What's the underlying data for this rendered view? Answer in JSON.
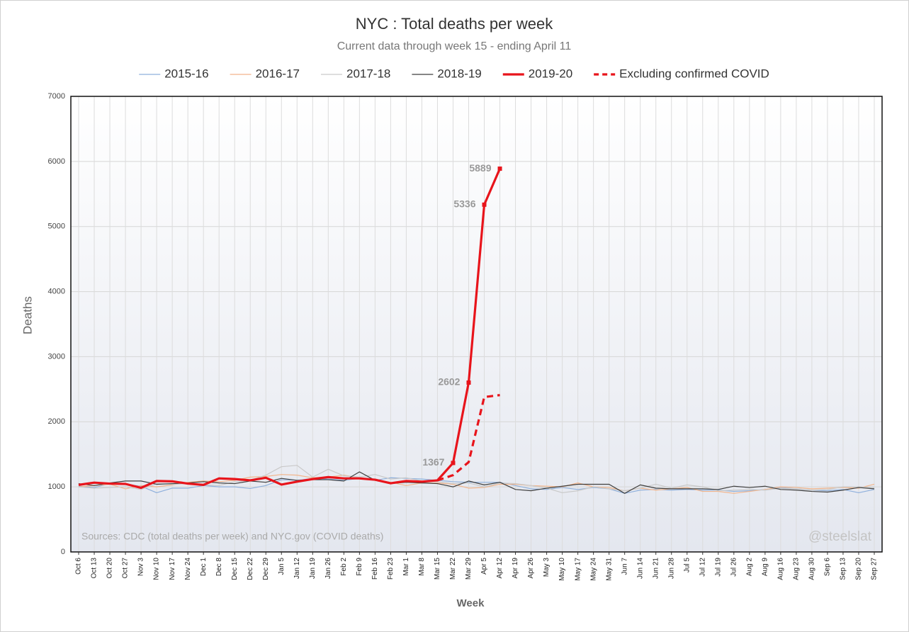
{
  "chart_data": {
    "type": "line",
    "title": "NYC : Total deaths per week",
    "subtitle": "Current data through week 15 - ending April 11",
    "x_label": "Week",
    "y_label": "Deaths",
    "annotations": [
      "Sources: CDC (total deaths per week) and NYC.gov (COVID deaths)",
      "@steelslat"
    ],
    "categories": [
      "Oct 6",
      "Oct 13",
      "Oct 20",
      "Oct 27",
      "Nov 3",
      "Nov 10",
      "Nov 17",
      "Nov 24",
      "Dec 1",
      "Dec 8",
      "Dec 15",
      "Dec 22",
      "Dec 29",
      "Jan 5",
      "Jan 12",
      "Jan 19",
      "Jan 26",
      "Feb 2",
      "Feb 9",
      "Feb 16",
      "Feb 23",
      "Mar 1",
      "Mar 8",
      "Mar 15",
      "Mar 22",
      "Mar 29",
      "Apr 5",
      "Apr 12",
      "Apr 19",
      "Apr 26",
      "May 3",
      "May 10",
      "May 17",
      "May 24",
      "May 31",
      "Jun 7",
      "Jun 14",
      "Jun 21",
      "Jun 28",
      "Jul 5",
      "Jul 12",
      "Jul 19",
      "Jul 26",
      "Aug 2",
      "Aug 9",
      "Aug 16",
      "Aug 23",
      "Aug 30",
      "Sep 6",
      "Sep 13",
      "Sep 20",
      "Sep 27"
    ],
    "ylim": [
      0,
      7000
    ],
    "yticks": [
      0,
      1000,
      2000,
      3000,
      4000,
      5000,
      6000,
      7000
    ],
    "grid": true,
    "legend": "top",
    "series": [
      {
        "name": "2015-16",
        "color": "#8fb0dc",
        "line_width": 1.2,
        "dash": false,
        "values": [
          1010,
          990,
          1050,
          1040,
          1010,
          910,
          980,
          980,
          1020,
          1000,
          1000,
          975,
          1020,
          1110,
          1100,
          1130,
          1120,
          1100,
          1130,
          1100,
          1140,
          1130,
          1120,
          1100,
          1080,
          1070,
          1070,
          1070,
          1020,
          970,
          960,
          990,
          960,
          990,
          970,
          900,
          950,
          960,
          950,
          960,
          950,
          950,
          930,
          940,
          960,
          990,
          970,
          950,
          940,
          960,
          910,
          960
        ]
      },
      {
        "name": "2016-17",
        "color": "#f2b58c",
        "line_width": 1.2,
        "dash": false,
        "values": [
          1000,
          1020,
          1040,
          970,
          1020,
          1000,
          1030,
          1070,
          1090,
          1080,
          1100,
          1150,
          1160,
          1190,
          1180,
          1140,
          1150,
          1180,
          1140,
          1100,
          1070,
          1020,
          1060,
          1060,
          1040,
          980,
          990,
          1040,
          1040,
          1020,
          1010,
          1000,
          1060,
          1000,
          990,
          940,
          980,
          950,
          970,
          990,
          930,
          930,
          900,
          930,
          960,
          1000,
          990,
          970,
          980,
          990,
          980,
          1040
        ]
      },
      {
        "name": "2017-18",
        "color": "#c9c9c9",
        "line_width": 1.2,
        "dash": false,
        "values": [
          1000,
          980,
          990,
          1000,
          960,
          1050,
          1040,
          1050,
          1030,
          1020,
          1080,
          1100,
          1180,
          1310,
          1330,
          1150,
          1270,
          1170,
          1150,
          1190,
          1120,
          1140,
          1090,
          1080,
          1050,
          1060,
          1000,
          1060,
          1050,
          1020,
          980,
          910,
          940,
          1000,
          970,
          940,
          980,
          1040,
          980,
          1030,
          1000,
          940,
          950,
          960,
          950,
          980,
          970,
          950,
          960,
          1000,
          1000,
          990
        ]
      },
      {
        "name": "2018-19",
        "color": "#3f3f3f",
        "line_width": 1.2,
        "dash": false,
        "values": [
          1050,
          1020,
          1060,
          1090,
          1090,
          1040,
          1050,
          1060,
          1080,
          1060,
          1050,
          1090,
          1070,
          1130,
          1100,
          1110,
          1110,
          1090,
          1230,
          1100,
          1050,
          1070,
          1060,
          1050,
          1000,
          1090,
          1030,
          1070,
          960,
          940,
          980,
          1010,
          1040,
          1040,
          1040,
          900,
          1030,
          980,
          970,
          970,
          970,
          960,
          1010,
          990,
          1010,
          960,
          950,
          930,
          920,
          950,
          990,
          970
        ]
      },
      {
        "name": "2019-20",
        "color": "#e8141b",
        "line_width": 3.2,
        "dash": false,
        "values": [
          1030,
          1065,
          1050,
          1045,
          985,
          1090,
          1085,
          1050,
          1030,
          1130,
          1120,
          1100,
          1140,
          1035,
          1080,
          1120,
          1150,
          1130,
          1130,
          1110,
          1055,
          1090,
          1080,
          1100,
          1367,
          2602,
          5336,
          5889,
          null,
          null,
          null,
          null,
          null,
          null,
          null,
          null,
          null,
          null,
          null,
          null,
          null,
          null,
          null,
          null,
          null,
          null,
          null,
          null,
          null,
          null,
          null,
          null
        ]
      },
      {
        "name": "Excluding confirmed COVID",
        "color": "#e8141b",
        "line_width": 3.2,
        "dash": true,
        "values": [
          null,
          null,
          null,
          null,
          null,
          null,
          null,
          null,
          null,
          null,
          null,
          null,
          null,
          null,
          null,
          null,
          null,
          null,
          null,
          null,
          null,
          null,
          null,
          1100,
          1180,
          1380,
          2380,
          2410,
          null,
          null,
          null,
          null,
          null,
          null,
          null,
          null,
          null,
          null,
          null,
          null,
          null,
          null,
          null,
          null,
          null,
          null,
          null,
          null,
          null,
          null,
          null,
          null
        ]
      }
    ]
  }
}
